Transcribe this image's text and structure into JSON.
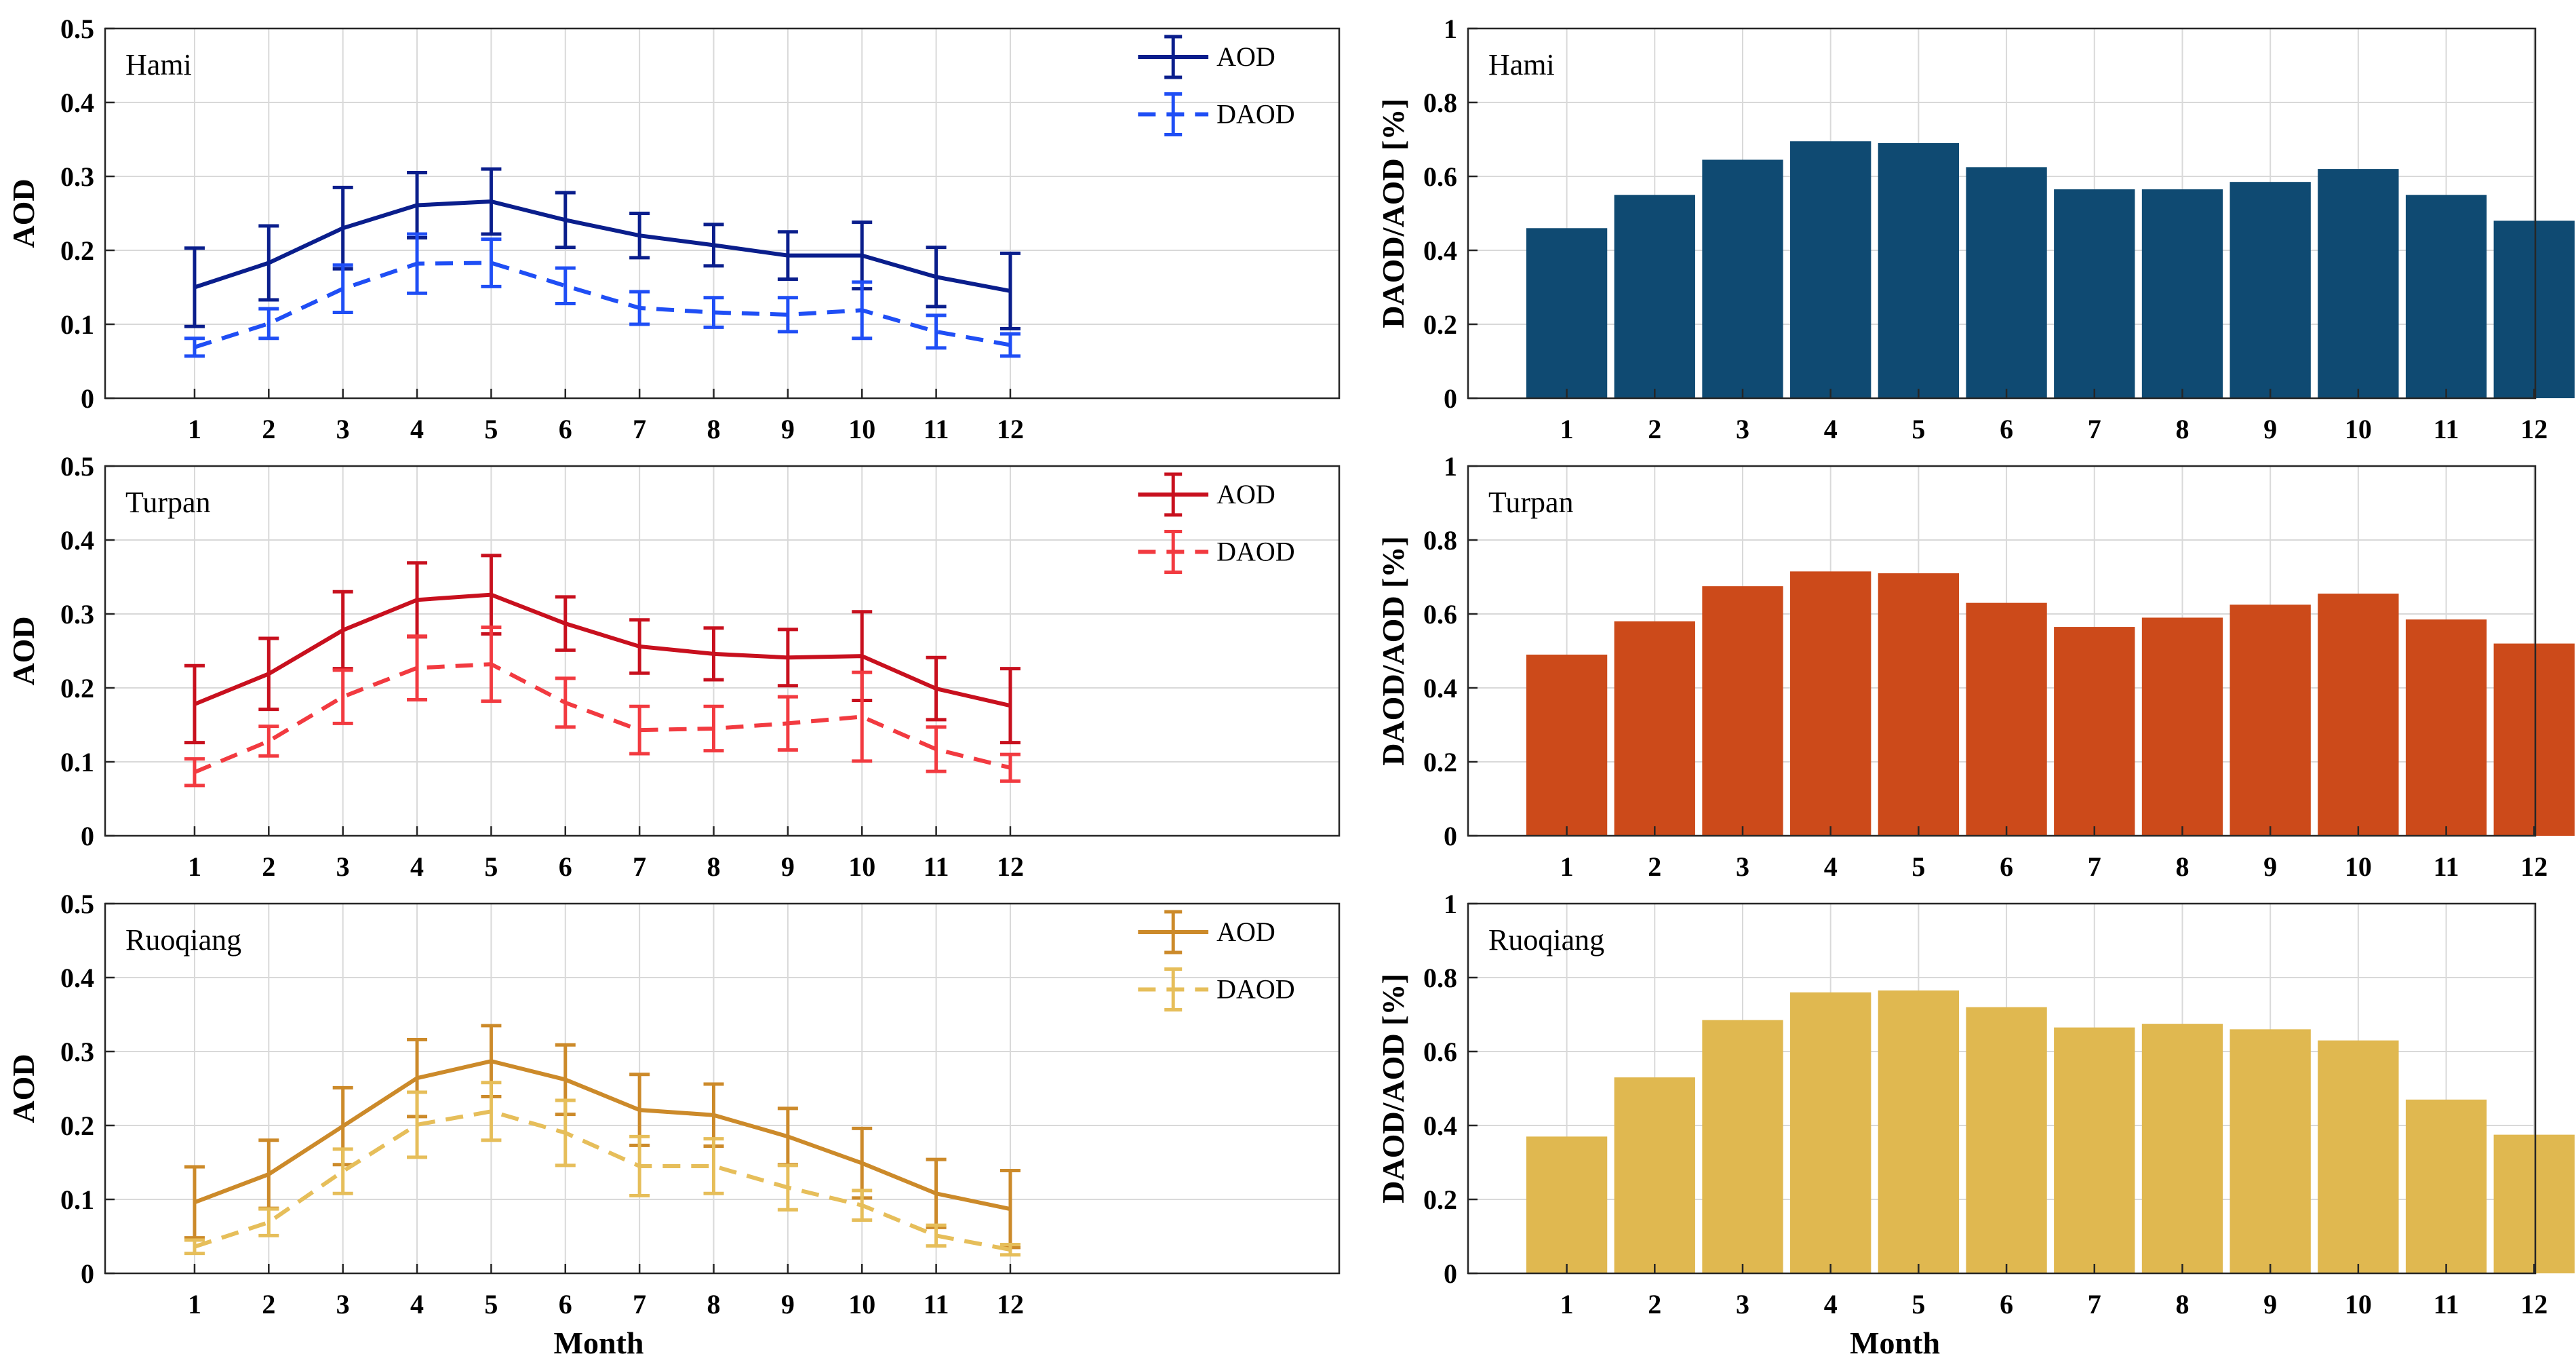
{
  "chart_data": [
    {
      "type": "line",
      "site": "Hami",
      "ylabel": "AOD",
      "xlabel": "",
      "ylim": [
        0,
        0.5
      ],
      "yticks": [
        "0",
        "0.1",
        "0.2",
        "0.3",
        "0.4",
        "0.5"
      ],
      "categories": [
        "1",
        "2",
        "3",
        "4",
        "5",
        "6",
        "7",
        "8",
        "9",
        "10",
        "11",
        "12"
      ],
      "grid": true,
      "legend_position": "top-right",
      "series": [
        {
          "name": "AOD",
          "color": "#0a1e8c",
          "dashed": false,
          "values": [
            0.15,
            0.183,
            0.23,
            0.261,
            0.266,
            0.241,
            0.22,
            0.207,
            0.193,
            0.193,
            0.164,
            0.145
          ],
          "errors": [
            0.053,
            0.05,
            0.055,
            0.044,
            0.044,
            0.037,
            0.03,
            0.028,
            0.032,
            0.045,
            0.04,
            0.051
          ]
        },
        {
          "name": "DAOD",
          "color": "#1f4ef5",
          "dashed": true,
          "values": [
            0.069,
            0.101,
            0.148,
            0.182,
            0.183,
            0.152,
            0.122,
            0.116,
            0.113,
            0.119,
            0.09,
            0.072
          ],
          "errors": [
            0.012,
            0.02,
            0.032,
            0.04,
            0.032,
            0.024,
            0.022,
            0.02,
            0.023,
            0.038,
            0.022,
            0.015
          ]
        }
      ]
    },
    {
      "type": "bar",
      "site": "Hami",
      "ylabel": "DAOD/AOD [%]",
      "xlabel": "",
      "ylim": [
        0,
        1
      ],
      "yticks": [
        "0",
        "0.2",
        "0.4",
        "0.6",
        "0.8",
        "1"
      ],
      "categories": [
        "1",
        "2",
        "3",
        "4",
        "5",
        "6",
        "7",
        "8",
        "9",
        "10",
        "11",
        "12"
      ],
      "grid": true,
      "color": "#0f4a72",
      "values": [
        0.46,
        0.55,
        0.645,
        0.695,
        0.69,
        0.625,
        0.565,
        0.565,
        0.585,
        0.62,
        0.55,
        0.48
      ]
    },
    {
      "type": "line",
      "site": "Turpan",
      "ylabel": "AOD",
      "xlabel": "",
      "ylim": [
        0,
        0.5
      ],
      "yticks": [
        "0",
        "0.1",
        "0.2",
        "0.3",
        "0.4",
        "0.5"
      ],
      "categories": [
        "1",
        "2",
        "3",
        "4",
        "5",
        "6",
        "7",
        "8",
        "9",
        "10",
        "11",
        "12"
      ],
      "grid": true,
      "legend_position": "top-right",
      "series": [
        {
          "name": "AOD",
          "color": "#c8101e",
          "dashed": false,
          "values": [
            0.178,
            0.219,
            0.278,
            0.319,
            0.326,
            0.287,
            0.256,
            0.246,
            0.241,
            0.243,
            0.199,
            0.176
          ],
          "errors": [
            0.052,
            0.048,
            0.052,
            0.05,
            0.053,
            0.036,
            0.036,
            0.035,
            0.038,
            0.06,
            0.042,
            0.05
          ]
        },
        {
          "name": "DAOD",
          "color": "#f23a40",
          "dashed": true,
          "values": [
            0.086,
            0.128,
            0.188,
            0.227,
            0.232,
            0.18,
            0.143,
            0.145,
            0.152,
            0.161,
            0.117,
            0.092
          ],
          "errors": [
            0.018,
            0.02,
            0.036,
            0.043,
            0.05,
            0.033,
            0.032,
            0.03,
            0.036,
            0.06,
            0.03,
            0.018
          ]
        }
      ]
    },
    {
      "type": "bar",
      "site": "Turpan",
      "ylabel": "DAOD/AOD [%]",
      "xlabel": "",
      "ylim": [
        0,
        1
      ],
      "yticks": [
        "0",
        "0.2",
        "0.4",
        "0.6",
        "0.8",
        "1"
      ],
      "categories": [
        "1",
        "2",
        "3",
        "4",
        "5",
        "6",
        "7",
        "8",
        "9",
        "10",
        "11",
        "12"
      ],
      "grid": true,
      "color": "#cc4a1a",
      "values": [
        0.49,
        0.58,
        0.675,
        0.715,
        0.71,
        0.63,
        0.565,
        0.59,
        0.625,
        0.655,
        0.585,
        0.52
      ]
    },
    {
      "type": "line",
      "site": "Ruoqiang",
      "ylabel": "AOD",
      "xlabel": "Month",
      "ylim": [
        0,
        0.5
      ],
      "yticks": [
        "0",
        "0.1",
        "0.2",
        "0.3",
        "0.4",
        "0.5"
      ],
      "categories": [
        "1",
        "2",
        "3",
        "4",
        "5",
        "6",
        "7",
        "8",
        "9",
        "10",
        "11",
        "12"
      ],
      "grid": true,
      "legend_position": "top-right",
      "series": [
        {
          "name": "AOD",
          "color": "#cc8a2a",
          "dashed": false,
          "values": [
            0.096,
            0.134,
            0.199,
            0.264,
            0.287,
            0.262,
            0.221,
            0.214,
            0.185,
            0.149,
            0.108,
            0.087
          ],
          "errors": [
            0.048,
            0.046,
            0.052,
            0.052,
            0.048,
            0.047,
            0.048,
            0.042,
            0.038,
            0.047,
            0.046,
            0.052
          ]
        },
        {
          "name": "DAOD",
          "color": "#e6be5a",
          "dashed": true,
          "values": [
            0.036,
            0.069,
            0.138,
            0.201,
            0.219,
            0.19,
            0.145,
            0.145,
            0.116,
            0.092,
            0.051,
            0.032
          ],
          "errors": [
            0.009,
            0.018,
            0.03,
            0.044,
            0.039,
            0.044,
            0.04,
            0.037,
            0.03,
            0.02,
            0.014,
            0.007
          ]
        }
      ]
    },
    {
      "type": "bar",
      "site": "Ruoqiang",
      "ylabel": "DAOD/AOD [%]",
      "xlabel": "Month",
      "ylim": [
        0,
        1
      ],
      "yticks": [
        "0",
        "0.2",
        "0.4",
        "0.6",
        "0.8",
        "1"
      ],
      "categories": [
        "1",
        "2",
        "3",
        "4",
        "5",
        "6",
        "7",
        "8",
        "9",
        "10",
        "11",
        "12"
      ],
      "grid": true,
      "color": "#e0b850",
      "values": [
        0.37,
        0.53,
        0.685,
        0.76,
        0.765,
        0.72,
        0.665,
        0.675,
        0.66,
        0.63,
        0.47,
        0.375
      ]
    }
  ]
}
